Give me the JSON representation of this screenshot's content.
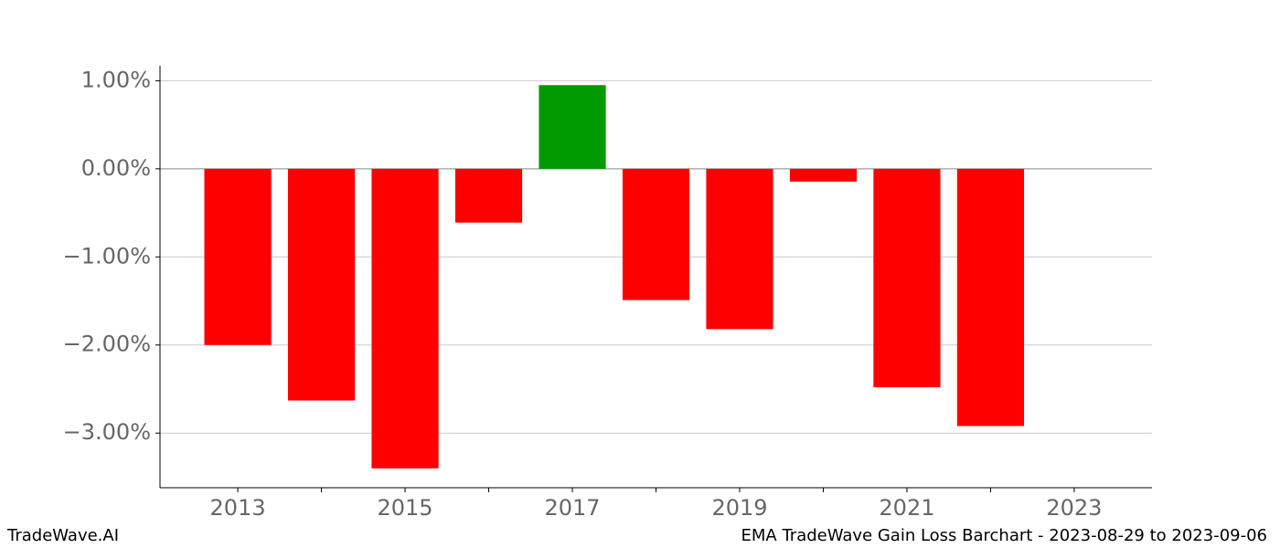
{
  "chart_data": {
    "type": "bar",
    "x": [
      2013,
      2014,
      2015,
      2016,
      2017,
      2018,
      2019,
      2020,
      2021,
      2022
    ],
    "values": [
      -2.0,
      -2.63,
      -3.4,
      -0.61,
      0.95,
      -1.49,
      -1.82,
      -0.145,
      -2.48,
      -2.92
    ],
    "colors": [
      "#ff0000",
      "#ff0000",
      "#ff0000",
      "#ff0000",
      "#009900",
      "#ff0000",
      "#ff0000",
      "#ff0000",
      "#ff0000",
      "#ff0000"
    ],
    "xlim": [
      2012.07,
      2023.93
    ],
    "xticks": [
      2013,
      2015,
      2017,
      2019,
      2021,
      2023
    ],
    "xminorticks": [
      2014,
      2016,
      2018,
      2020,
      2022
    ],
    "ylim": [
      -3.62,
      1.17
    ],
    "yticks": [
      {
        "value": 1,
        "label": "1.00%"
      },
      {
        "value": 0,
        "label": "0.00%"
      },
      {
        "value": -1,
        "label": "−1.00%"
      },
      {
        "value": -2,
        "label": "−2.00%"
      },
      {
        "value": -3,
        "label": "−3.00%"
      }
    ],
    "grid": true
  },
  "footer": {
    "left": "TradeWave.AI",
    "right": "EMA TradeWave Gain Loss Barchart - 2023-08-29 to 2023-09-06"
  }
}
